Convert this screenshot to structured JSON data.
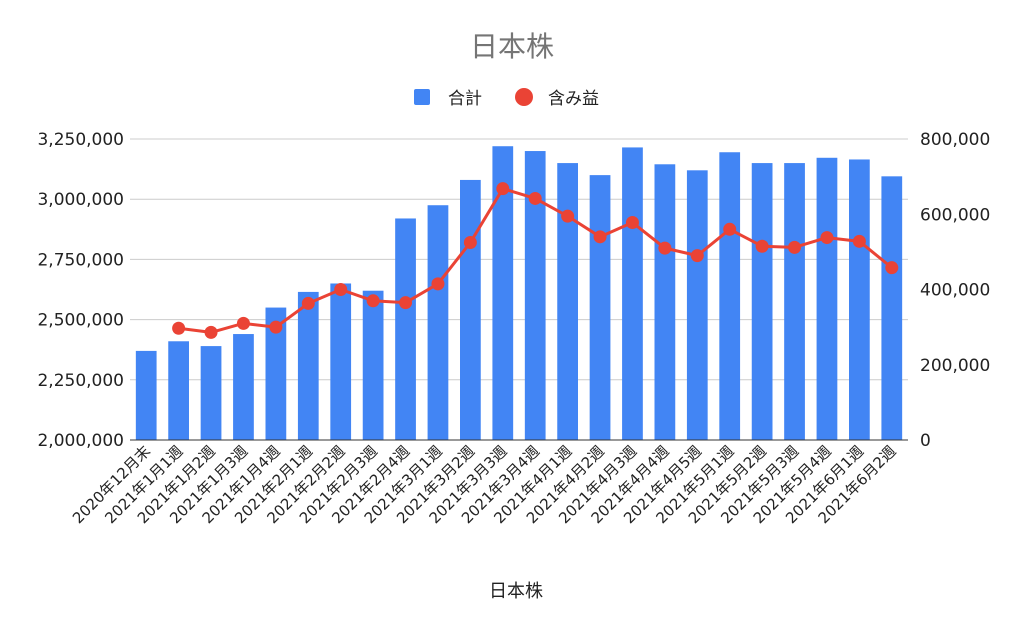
{
  "chart_data": {
    "type": "bar",
    "title": "日本株",
    "xlabel": "日本株",
    "ylabel": "",
    "y2label": "",
    "legend_position": "top",
    "grid": true,
    "ylim": [
      2000000,
      3250000
    ],
    "y2lim": [
      0,
      800000
    ],
    "yticks": [
      "2,000,000",
      "2,250,000",
      "2,500,000",
      "2,750,000",
      "3,000,000",
      "3,250,000"
    ],
    "y2ticks": [
      "0",
      "200,000",
      "400,000",
      "600,000",
      "800,000"
    ],
    "categories": [
      "2020年12月末",
      "2021年1月1週",
      "2021年1月2週",
      "2021年1月3週",
      "2021年1月4週",
      "2021年2月1週",
      "2021年2月2週",
      "2021年2月3週",
      "2021年2月4週",
      "2021年3月1週",
      "2021年3月2週",
      "2021年3月3週",
      "2021年3月4週",
      "2021年4月1週",
      "2021年4月2週",
      "2021年4月3週",
      "2021年4月4週",
      "2021年4月5週",
      "2021年5月1週",
      "2021年5月2週",
      "2021年5月3週",
      "2021年5月4週",
      "2021年6月1週",
      "2021年6月2週"
    ],
    "series": [
      {
        "name": "合計",
        "kind": "bar",
        "axis": "left",
        "color": "#4285f4",
        "values": [
          2370000,
          2410000,
          2390000,
          2440000,
          2550000,
          2615000,
          2650000,
          2620000,
          2920000,
          2975000,
          3080000,
          3220000,
          3200000,
          3150000,
          3100000,
          3215000,
          3145000,
          3120000,
          3195000,
          3150000,
          3150000,
          3172000,
          3165000,
          3095000
        ]
      },
      {
        "name": "含み益",
        "kind": "line",
        "axis": "right",
        "color": "#ea4335",
        "values": [
          null,
          297000,
          286000,
          310000,
          300000,
          363000,
          400000,
          370000,
          365000,
          415000,
          525000,
          668000,
          642000,
          595000,
          540000,
          578000,
          510000,
          490000,
          560000,
          515000,
          512000,
          538000,
          528000,
          458000
        ]
      }
    ]
  }
}
